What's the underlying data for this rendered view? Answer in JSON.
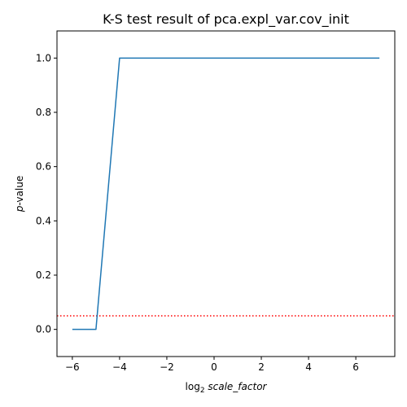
{
  "chart_data": {
    "type": "line",
    "title": "K-S test result of pca.expl_var.cov_init",
    "xlabel": {
      "prefix": "log",
      "subscript": "2",
      "variable": "scale_factor"
    },
    "ylabel": {
      "variable": "p",
      "suffix": "-value"
    },
    "xlim": [
      -6.65,
      7.65
    ],
    "ylim": [
      -0.1,
      1.1
    ],
    "xticks": [
      -6,
      -4,
      -2,
      0,
      2,
      4,
      6
    ],
    "xtick_labels": [
      "−6",
      "−4",
      "−2",
      "0",
      "2",
      "4",
      "6"
    ],
    "yticks": [
      0.0,
      0.2,
      0.4,
      0.6,
      0.8,
      1.0
    ],
    "ytick_labels": [
      "0.0",
      "0.2",
      "0.4",
      "0.6",
      "0.8",
      "1.0"
    ],
    "grid": false,
    "series": [
      {
        "color": "#1f77b4",
        "x": [
          -6,
          -5,
          -4,
          -3,
          -2,
          -1,
          0,
          1,
          2,
          3,
          4,
          5,
          6,
          7
        ],
        "y": [
          0.0,
          0.0,
          1.0,
          1.0,
          1.0,
          1.0,
          1.0,
          1.0,
          1.0,
          1.0,
          1.0,
          1.0,
          1.0,
          1.0
        ]
      }
    ],
    "reference_line": {
      "y": 0.05,
      "color": "#ff0000",
      "style": "dotted"
    }
  }
}
